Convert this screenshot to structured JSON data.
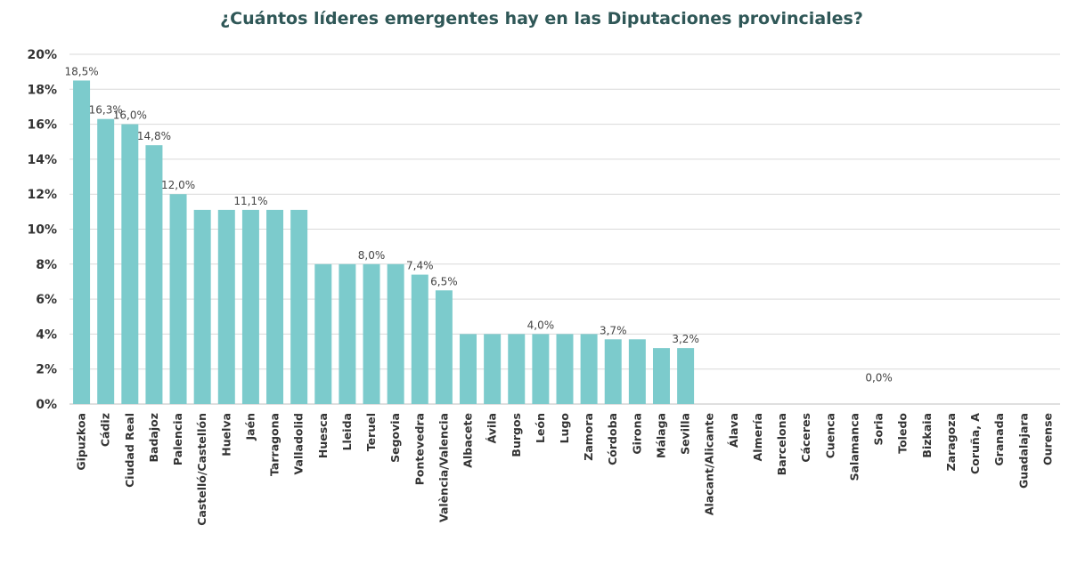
{
  "chart_data": {
    "type": "bar",
    "title": "¿Cuántos líderes emergentes hay en las Diputaciones provinciales?",
    "xlabel": "",
    "ylabel": "",
    "ylim": [
      0,
      20
    ],
    "yticks": [
      0,
      2,
      4,
      6,
      8,
      10,
      12,
      14,
      16,
      18,
      20
    ],
    "ytick_labels": [
      "0%",
      "2%",
      "4%",
      "6%",
      "8%",
      "10%",
      "12%",
      "14%",
      "16%",
      "18%",
      "20%"
    ],
    "grid": true,
    "bar_color": "#7ccbcc",
    "categories": [
      "Gipuzkoa",
      "Cádiz",
      "Ciudad Real",
      "Badajoz",
      "Palencia",
      "Castelló/Castellón",
      "Huelva",
      "Jaén",
      "Tarragona",
      "Valladolid",
      "Huesca",
      "Lleida",
      "Teruel",
      "Segovia",
      "Pontevedra",
      "València/Valencia",
      "Albacete",
      "Ávila",
      "Burgos",
      "León",
      "Lugo",
      "Zamora",
      "Córdoba",
      "Girona",
      "Málaga",
      "Sevilla",
      "Alacant/Alicante",
      "Álava",
      "Almería",
      "Barcelona",
      "Cáceres",
      "Cuenca",
      "Salamanca",
      "Soria",
      "Toledo",
      "Bizkaia",
      "Zaragoza",
      "Coruña, A",
      "Granada",
      "Guadalajara",
      "Ourense"
    ],
    "values": [
      18.5,
      16.3,
      16.0,
      14.8,
      12.0,
      11.1,
      11.1,
      11.1,
      11.1,
      11.1,
      8.0,
      8.0,
      8.0,
      8.0,
      7.4,
      6.5,
      4.0,
      4.0,
      4.0,
      4.0,
      4.0,
      4.0,
      3.7,
      3.7,
      3.2,
      3.2,
      0,
      0,
      0,
      0,
      0,
      0,
      0,
      0,
      0,
      0,
      0,
      0,
      0,
      0,
      0
    ],
    "data_labels": [
      {
        "index": 0,
        "text": "18,5%"
      },
      {
        "index": 1,
        "text": "16,3%"
      },
      {
        "index": 2,
        "text": "16,0%"
      },
      {
        "index": 3,
        "text": "14,8%"
      },
      {
        "index": 4,
        "text": "12,0%"
      },
      {
        "index": 7,
        "text": "11,1%"
      },
      {
        "index": 12,
        "text": "8,0%"
      },
      {
        "index": 14,
        "text": "7,4%"
      },
      {
        "index": 15,
        "text": "6,5%"
      },
      {
        "index": 19,
        "text": "4,0%"
      },
      {
        "index": 22,
        "text": "3,7%"
      },
      {
        "index": 25,
        "text": "3,2%"
      },
      {
        "index": 33,
        "text": "0,0%"
      }
    ]
  }
}
